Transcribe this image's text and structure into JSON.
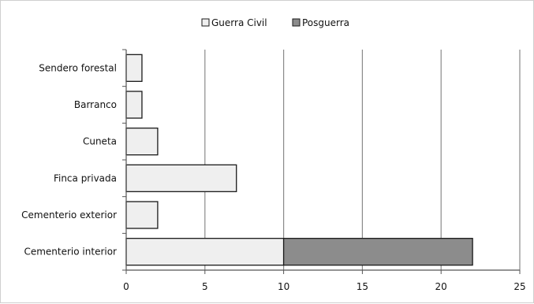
{
  "chart_data": {
    "type": "bar",
    "orientation": "horizontal",
    "stacked": true,
    "categories": [
      "Sendero forestal",
      "Barranco",
      "Cuneta",
      "Finca privada",
      "Cementerio exterior",
      "Cementerio interior"
    ],
    "series": [
      {
        "name": "Guerra Civil",
        "color": "#efefef",
        "values": [
          1,
          1,
          2,
          7,
          2,
          10
        ]
      },
      {
        "name": "Posguerra",
        "color": "#8c8c8c",
        "values": [
          0,
          0,
          0,
          0,
          0,
          12
        ]
      }
    ],
    "xlim": [
      0,
      25
    ],
    "xticks": [
      0,
      5,
      10,
      15,
      20,
      25
    ],
    "grid": "vertical",
    "legend": "top-center",
    "title": "",
    "xlabel": "",
    "ylabel": ""
  }
}
